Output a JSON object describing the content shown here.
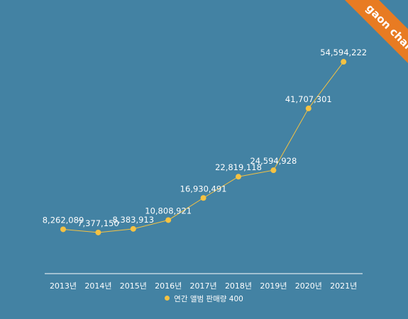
{
  "brand": {
    "label": "gaon chart",
    "color": "#e87b22"
  },
  "background_color": "#4382a3",
  "chart_data": {
    "type": "line",
    "categories": [
      "2013년",
      "2014년",
      "2015년",
      "2016년",
      "2017년",
      "2018년",
      "2019년",
      "2020년",
      "2021년"
    ],
    "series": [
      {
        "name": "연간 앨범 판매량 400",
        "values": [
          8262089,
          7377150,
          8383913,
          10808921,
          16930491,
          22819118,
          24594928,
          41707301,
          54594222
        ],
        "labels": [
          "8,262,089",
          "7,377,150",
          "8,383,913",
          "10,808,921",
          "16,930,491",
          "22,819,118",
          "24,594,928",
          "41,707,301",
          "54,594,222"
        ],
        "color": "#f5c242"
      }
    ],
    "ylim": [
      -4000000,
      56000000
    ],
    "grid": false,
    "legend_position": "bottom",
    "axis_color": "#ffffff"
  }
}
